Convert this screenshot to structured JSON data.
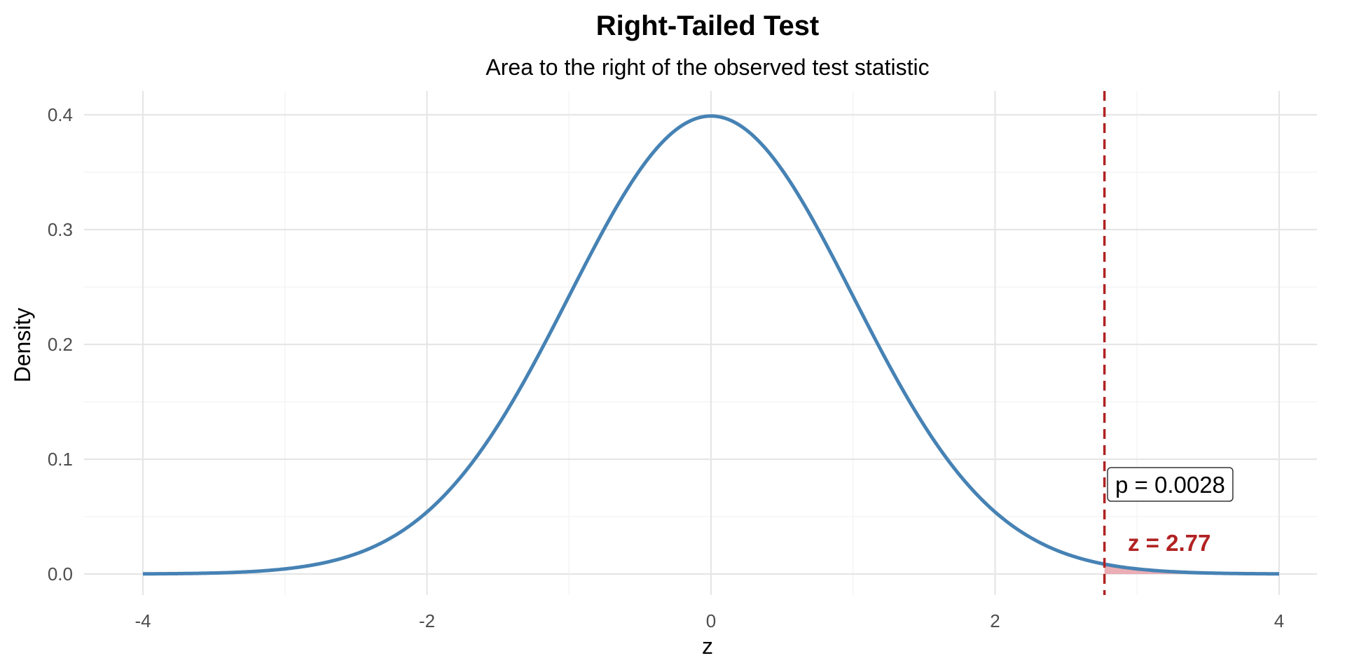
{
  "chart_data": {
    "type": "line",
    "title": "Right-Tailed Test",
    "subtitle": "Area to the right of the observed test statistic",
    "xlabel": "z",
    "ylabel": "Density",
    "xlim": [
      -4,
      4
    ],
    "ylim": [
      0,
      0.4
    ],
    "x_ticks": [
      -4,
      -2,
      0,
      2,
      4
    ],
    "y_ticks": [
      0.0,
      0.1,
      0.2,
      0.3,
      0.4
    ],
    "x_tick_labels": [
      "-4",
      "-2",
      "0",
      "2",
      "4"
    ],
    "y_tick_labels": [
      "0.0",
      "0.1",
      "0.2",
      "0.3",
      "0.4"
    ],
    "grid": true,
    "series": [
      {
        "distribution": "standard normal density",
        "x": [
          -4,
          -3.5,
          -3,
          -2.5,
          -2,
          -1.5,
          -1,
          -0.5,
          0,
          0.5,
          1,
          1.5,
          2,
          2.5,
          3,
          3.5,
          4
        ],
        "y": [
          0.0001,
          0.0009,
          0.0044,
          0.0175,
          0.054,
          0.1295,
          0.242,
          0.3521,
          0.3989,
          0.3521,
          0.242,
          0.1295,
          0.054,
          0.0175,
          0.0044,
          0.0009,
          0.0001
        ],
        "color": "#4682b4"
      }
    ],
    "shaded_region": {
      "from": 2.77,
      "to": 4,
      "color": "#e8a0a8"
    },
    "critical_line": {
      "x": 2.77,
      "color": "#b22222",
      "style": "dashed"
    },
    "annotations": {
      "p_label": "p = 0.0028",
      "z_label": "z = 2.77",
      "z_color": "#b22222"
    }
  }
}
